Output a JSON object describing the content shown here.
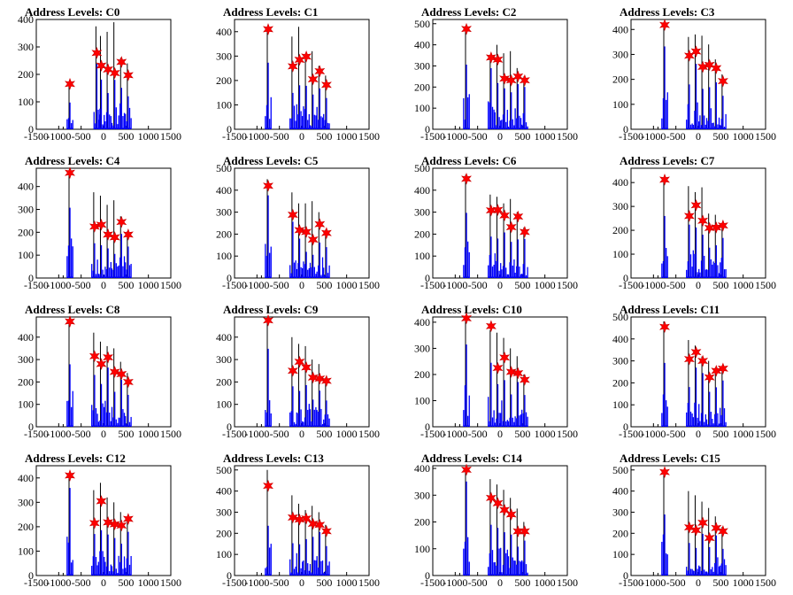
{
  "chart_data": {
    "type": "bar",
    "title_prefix": "Address Levels: ",
    "xlim": [
      -1500,
      1500
    ],
    "xticks": [
      -1500,
      -1000,
      -500,
      0,
      500,
      1000,
      1500
    ],
    "series_colors": {
      "histogram": "#0000ff",
      "envelope": "#000000",
      "markers": "#ff0000"
    },
    "panels": [
      {
        "title": "C0",
        "ylim": [
          0,
          400
        ],
        "yticks": [
          0,
          100,
          200,
          300,
          400
        ],
        "peaks": [
          {
            "x": -750,
            "h": 170,
            "k": 165
          },
          {
            "x": -150,
            "h": 375,
            "k": 278
          },
          {
            "x": -50,
            "h": 340,
            "k": 232
          },
          {
            "x": 100,
            "h": 355,
            "k": 218
          },
          {
            "x": 250,
            "h": 390,
            "k": 205
          },
          {
            "x": 400,
            "h": 260,
            "k": 245
          },
          {
            "x": 550,
            "h": 240,
            "k": 197
          }
        ]
      },
      {
        "title": "C1",
        "ylim": [
          0,
          450
        ],
        "yticks": [
          0,
          100,
          200,
          300,
          400
        ],
        "peaks": [
          {
            "x": -750,
            "h": 420,
            "k": 410
          },
          {
            "x": -200,
            "h": 380,
            "k": 258
          },
          {
            "x": -50,
            "h": 420,
            "k": 285
          },
          {
            "x": 100,
            "h": 310,
            "k": 298
          },
          {
            "x": 250,
            "h": 320,
            "k": 205
          },
          {
            "x": 400,
            "h": 260,
            "k": 238
          },
          {
            "x": 550,
            "h": 220,
            "k": 182
          }
        ]
      },
      {
        "title": "C2",
        "ylim": [
          0,
          520
        ],
        "yticks": [
          0,
          100,
          200,
          300,
          400,
          500
        ],
        "peaks": [
          {
            "x": -750,
            "h": 490,
            "k": 475
          },
          {
            "x": -200,
            "h": 340,
            "k": 340
          },
          {
            "x": -50,
            "h": 400,
            "k": 330
          },
          {
            "x": 100,
            "h": 360,
            "k": 240
          },
          {
            "x": 250,
            "h": 370,
            "k": 232
          },
          {
            "x": 400,
            "h": 290,
            "k": 250
          },
          {
            "x": 550,
            "h": 250,
            "k": 232
          }
        ]
      },
      {
        "title": "C3",
        "ylim": [
          0,
          440
        ],
        "yticks": [
          0,
          100,
          200,
          300,
          400
        ],
        "peaks": [
          {
            "x": -750,
            "h": 430,
            "k": 418
          },
          {
            "x": -200,
            "h": 370,
            "k": 295
          },
          {
            "x": -50,
            "h": 380,
            "k": 312
          },
          {
            "x": 100,
            "h": 375,
            "k": 250
          },
          {
            "x": 250,
            "h": 340,
            "k": 258
          },
          {
            "x": 400,
            "h": 280,
            "k": 245
          },
          {
            "x": 550,
            "h": 220,
            "k": 193
          }
        ]
      },
      {
        "title": "C4",
        "ylim": [
          0,
          480
        ],
        "yticks": [
          0,
          100,
          200,
          300,
          400
        ],
        "peaks": [
          {
            "x": -750,
            "h": 470,
            "k": 460
          },
          {
            "x": -200,
            "h": 375,
            "k": 225
          },
          {
            "x": -50,
            "h": 360,
            "k": 233
          },
          {
            "x": 100,
            "h": 320,
            "k": 190
          },
          {
            "x": 250,
            "h": 340,
            "k": 178
          },
          {
            "x": 400,
            "h": 270,
            "k": 245
          },
          {
            "x": 550,
            "h": 205,
            "k": 190
          }
        ]
      },
      {
        "title": "C5",
        "ylim": [
          0,
          500
        ],
        "yticks": [
          0,
          100,
          200,
          300,
          400,
          500
        ],
        "peaks": [
          {
            "x": -750,
            "h": 450,
            "k": 420
          },
          {
            "x": -200,
            "h": 390,
            "k": 288
          },
          {
            "x": -50,
            "h": 340,
            "k": 218
          },
          {
            "x": 100,
            "h": 340,
            "k": 210
          },
          {
            "x": 250,
            "h": 350,
            "k": 175
          },
          {
            "x": 400,
            "h": 300,
            "k": 245
          },
          {
            "x": 550,
            "h": 220,
            "k": 205
          }
        ]
      },
      {
        "title": "C6",
        "ylim": [
          0,
          500
        ],
        "yticks": [
          0,
          100,
          200,
          300,
          400,
          500
        ],
        "peaks": [
          {
            "x": -750,
            "h": 470,
            "k": 452
          },
          {
            "x": -200,
            "h": 380,
            "k": 308
          },
          {
            "x": -50,
            "h": 370,
            "k": 310
          },
          {
            "x": 100,
            "h": 340,
            "k": 285
          },
          {
            "x": 250,
            "h": 360,
            "k": 232
          },
          {
            "x": 400,
            "h": 300,
            "k": 280
          },
          {
            "x": 550,
            "h": 230,
            "k": 210
          }
        ]
      },
      {
        "title": "C7",
        "ylim": [
          0,
          460
        ],
        "yticks": [
          0,
          100,
          200,
          300,
          400
        ],
        "peaks": [
          {
            "x": -750,
            "h": 420,
            "k": 412
          },
          {
            "x": -200,
            "h": 385,
            "k": 260
          },
          {
            "x": -50,
            "h": 360,
            "k": 305
          },
          {
            "x": 100,
            "h": 380,
            "k": 240
          },
          {
            "x": 250,
            "h": 270,
            "k": 210
          },
          {
            "x": 400,
            "h": 265,
            "k": 212
          },
          {
            "x": 550,
            "h": 225,
            "k": 220
          }
        ]
      },
      {
        "title": "C8",
        "ylim": [
          0,
          490
        ],
        "yticks": [
          0,
          100,
          200,
          300,
          400
        ],
        "peaks": [
          {
            "x": -750,
            "h": 480,
            "k": 470
          },
          {
            "x": -200,
            "h": 420,
            "k": 315
          },
          {
            "x": -50,
            "h": 380,
            "k": 280
          },
          {
            "x": 100,
            "h": 360,
            "k": 310
          },
          {
            "x": 250,
            "h": 350,
            "k": 245
          },
          {
            "x": 400,
            "h": 290,
            "k": 235
          },
          {
            "x": 550,
            "h": 240,
            "k": 200
          }
        ]
      },
      {
        "title": "C9",
        "ylim": [
          0,
          490
        ],
        "yticks": [
          0,
          100,
          200,
          300,
          400
        ],
        "peaks": [
          {
            "x": -750,
            "h": 480,
            "k": 475
          },
          {
            "x": -200,
            "h": 400,
            "k": 250
          },
          {
            "x": -50,
            "h": 370,
            "k": 290
          },
          {
            "x": 100,
            "h": 360,
            "k": 265
          },
          {
            "x": 250,
            "h": 300,
            "k": 220
          },
          {
            "x": 400,
            "h": 280,
            "k": 215
          },
          {
            "x": 550,
            "h": 220,
            "k": 205
          }
        ]
      },
      {
        "title": "C10",
        "ylim": [
          0,
          420
        ],
        "yticks": [
          0,
          100,
          200,
          300,
          400
        ],
        "peaks": [
          {
            "x": -750,
            "h": 420,
            "k": 415
          },
          {
            "x": -200,
            "h": 370,
            "k": 385
          },
          {
            "x": -50,
            "h": 360,
            "k": 225
          },
          {
            "x": 100,
            "h": 340,
            "k": 265
          },
          {
            "x": 250,
            "h": 300,
            "k": 210
          },
          {
            "x": 400,
            "h": 270,
            "k": 205
          },
          {
            "x": 550,
            "h": 200,
            "k": 180
          }
        ]
      },
      {
        "title": "C11",
        "ylim": [
          0,
          500
        ],
        "yticks": [
          0,
          100,
          200,
          300,
          400,
          500
        ],
        "peaks": [
          {
            "x": -750,
            "h": 480,
            "k": 455
          },
          {
            "x": -200,
            "h": 395,
            "k": 308
          },
          {
            "x": -50,
            "h": 370,
            "k": 340
          },
          {
            "x": 100,
            "h": 320,
            "k": 300
          },
          {
            "x": 250,
            "h": 300,
            "k": 225
          },
          {
            "x": 400,
            "h": 270,
            "k": 255
          },
          {
            "x": 550,
            "h": 270,
            "k": 265
          }
        ]
      },
      {
        "title": "C12",
        "ylim": [
          0,
          450
        ],
        "yticks": [
          0,
          100,
          200,
          300,
          400
        ],
        "peaks": [
          {
            "x": -750,
            "h": 420,
            "k": 410
          },
          {
            "x": -200,
            "h": 350,
            "k": 215
          },
          {
            "x": -50,
            "h": 380,
            "k": 305
          },
          {
            "x": 100,
            "h": 320,
            "k": 218
          },
          {
            "x": 250,
            "h": 300,
            "k": 210
          },
          {
            "x": 400,
            "h": 260,
            "k": 205
          },
          {
            "x": 550,
            "h": 240,
            "k": 232
          }
        ]
      },
      {
        "title": "C13",
        "ylim": [
          0,
          520
        ],
        "yticks": [
          0,
          100,
          200,
          300,
          400,
          500
        ],
        "peaks": [
          {
            "x": -750,
            "h": 500,
            "k": 425
          },
          {
            "x": -200,
            "h": 380,
            "k": 275
          },
          {
            "x": -50,
            "h": 340,
            "k": 265
          },
          {
            "x": 100,
            "h": 310,
            "k": 270
          },
          {
            "x": 250,
            "h": 330,
            "k": 245
          },
          {
            "x": 400,
            "h": 300,
            "k": 240
          },
          {
            "x": 550,
            "h": 240,
            "k": 210
          }
        ]
      },
      {
        "title": "C14",
        "ylim": [
          0,
          410
        ],
        "yticks": [
          0,
          100,
          200,
          300,
          400
        ],
        "peaks": [
          {
            "x": -750,
            "h": 400,
            "k": 395
          },
          {
            "x": -200,
            "h": 360,
            "k": 290
          },
          {
            "x": -50,
            "h": 340,
            "k": 270
          },
          {
            "x": 100,
            "h": 320,
            "k": 245
          },
          {
            "x": 250,
            "h": 290,
            "k": 228
          },
          {
            "x": 400,
            "h": 250,
            "k": 165
          },
          {
            "x": 550,
            "h": 200,
            "k": 165
          }
        ]
      },
      {
        "title": "C15",
        "ylim": [
          0,
          520
        ],
        "yticks": [
          0,
          100,
          200,
          300,
          400,
          500
        ],
        "peaks": [
          {
            "x": -750,
            "h": 500,
            "k": 490
          },
          {
            "x": -200,
            "h": 400,
            "k": 228
          },
          {
            "x": -50,
            "h": 380,
            "k": 215
          },
          {
            "x": 100,
            "h": 350,
            "k": 250
          },
          {
            "x": 250,
            "h": 320,
            "k": 178
          },
          {
            "x": 400,
            "h": 280,
            "k": 225
          },
          {
            "x": 550,
            "h": 230,
            "k": 210
          }
        ]
      }
    ]
  }
}
